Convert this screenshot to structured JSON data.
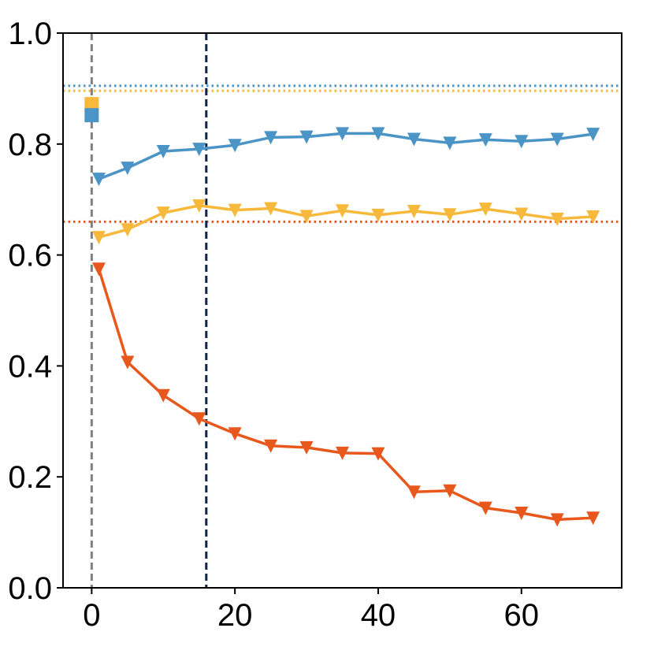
{
  "chart_data": {
    "type": "line",
    "title": "",
    "xlabel": "",
    "ylabel": "",
    "xlim": [
      -4,
      74
    ],
    "ylim": [
      0,
      1
    ],
    "x_ticks": [
      0,
      20,
      40,
      60
    ],
    "x_tick_labels": [
      "0",
      "20",
      "40",
      "60"
    ],
    "y_ticks": [
      0,
      0.2,
      0.4,
      0.6,
      0.8,
      1.0
    ],
    "y_tick_labels": [
      "0.0",
      "0.2",
      "0.4",
      "0.6",
      "0.8",
      "1.0"
    ],
    "grid": false,
    "x": [
      1,
      5,
      10,
      15,
      20,
      25,
      30,
      35,
      40,
      45,
      50,
      55,
      60,
      65,
      70
    ],
    "series": [
      {
        "name": "blue",
        "color": "#4a94c6",
        "marker": "triangle-down",
        "values": [
          0.737,
          0.757,
          0.787,
          0.791,
          0.798,
          0.812,
          0.813,
          0.819,
          0.819,
          0.809,
          0.802,
          0.808,
          0.805,
          0.809,
          0.818
        ]
      },
      {
        "name": "yellow",
        "color": "#f6b93b",
        "marker": "triangle-down",
        "values": [
          0.632,
          0.646,
          0.676,
          0.689,
          0.681,
          0.684,
          0.67,
          0.68,
          0.672,
          0.679,
          0.673,
          0.683,
          0.674,
          0.665,
          0.669
        ]
      },
      {
        "name": "orange",
        "color": "#e8581c",
        "marker": "triangle-down",
        "values": [
          0.575,
          0.407,
          0.347,
          0.305,
          0.278,
          0.256,
          0.253,
          0.243,
          0.242,
          0.173,
          0.175,
          0.144,
          0.135,
          0.123,
          0.126
        ]
      }
    ],
    "reference_lines": [
      {
        "orientation": "horizontal",
        "value": 0.905,
        "color": "#4a94c6",
        "style": "dotted"
      },
      {
        "orientation": "horizontal",
        "value": 0.896,
        "color": "#f6b93b",
        "style": "dotted"
      },
      {
        "orientation": "horizontal",
        "value": 0.66,
        "color": "#e8581c",
        "style": "dotted"
      },
      {
        "orientation": "vertical",
        "value": 0,
        "color": "#808080",
        "style": "dashed"
      },
      {
        "orientation": "vertical",
        "value": 16,
        "color": "#0d2347",
        "style": "dashed"
      }
    ],
    "square_markers": [
      {
        "x": 0,
        "y": 0.872,
        "color": "#f6b93b"
      },
      {
        "x": 0,
        "y": 0.852,
        "color": "#4a94c6"
      }
    ]
  }
}
